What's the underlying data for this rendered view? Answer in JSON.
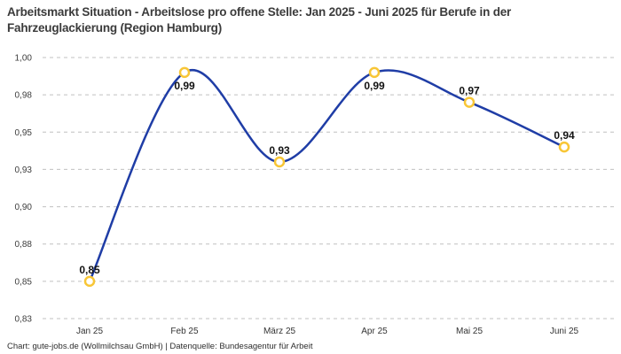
{
  "footer": {
    "text": "Chart: gute-jobs.de (Wollmilchsau GmbH) | Datenquelle: Bundesagentur für Arbeit"
  },
  "colors": {
    "line": "#1f3da6",
    "marker_ring": "#f8c636",
    "marker_fill": "#ffffff",
    "grid": "#c0c0c0",
    "title": "#3b3b3b",
    "tick": "#3d3d3d",
    "value_label": "#121212",
    "background": "#ffffff"
  },
  "chart_data": {
    "type": "line",
    "title": "Arbeitsmarkt Situation - Arbeitslose pro offene Stelle: Jan 2025 - Juni 2025 für Berufe in der Fahrzeuglackierung (Region Hamburg)",
    "xlabel": "",
    "ylabel": "",
    "categories": [
      "Jan 25",
      "Feb 25",
      "März 25",
      "Apr 25",
      "Mai 25",
      "Juni 25"
    ],
    "values": [
      0.85,
      0.99,
      0.93,
      0.99,
      0.97,
      0.94
    ],
    "value_labels": [
      "0,85",
      "0,99",
      "0,93",
      "0,99",
      "0,97",
      "0,94"
    ],
    "ylim": [
      0.825,
      1.0
    ],
    "yticks": [
      {
        "value": 0.825,
        "label": "0,83"
      },
      {
        "value": 0.85,
        "label": "0,85"
      },
      {
        "value": 0.875,
        "label": "0,88"
      },
      {
        "value": 0.9,
        "label": "0,90"
      },
      {
        "value": 0.925,
        "label": "0,93"
      },
      {
        "value": 0.95,
        "label": "0,95"
      },
      {
        "value": 0.975,
        "label": "0,98"
      },
      {
        "value": 1.0,
        "label": "1,00"
      }
    ],
    "grid": "horizontal-dashed",
    "legend": "none",
    "smooth": true,
    "marker": "open-circle"
  }
}
